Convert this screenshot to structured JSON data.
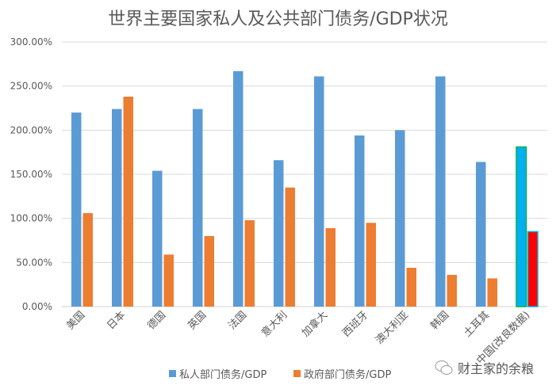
{
  "chart_data": {
    "type": "bar",
    "title": "世界主要国家私人及公共部门债务/GDP状况",
    "categories": [
      "美国",
      "日本",
      "德国",
      "英国",
      "法国",
      "意大利",
      "加拿大",
      "西班牙",
      "澳大利亚",
      "韩国",
      "土耳其",
      "中国(改良数据)"
    ],
    "series": [
      {
        "name": "私人部门债务/GDP",
        "color": "#5B9BD5",
        "values": [
          220,
          224,
          154,
          224,
          267,
          166,
          261,
          194,
          200,
          261,
          164,
          181
        ]
      },
      {
        "name": "政府部门债务/GDP",
        "color": "#ED7D31",
        "values": [
          106,
          238,
          59,
          80,
          98,
          135,
          89,
          95,
          44,
          36,
          32,
          85
        ]
      }
    ],
    "highlight": {
      "category": "中国(改良数据)",
      "private_fill": "#00B0F0",
      "private_border": "#00B050",
      "government_fill": "#FF0000",
      "government_border": "#00B0F0"
    },
    "yticks": [
      "0.00%",
      "50.00%",
      "100.00%",
      "150.00%",
      "200.00%",
      "250.00%",
      "300.00%"
    ],
    "ylim": [
      0,
      300
    ],
    "unit": "%",
    "grid": true,
    "legend": "bottom"
  },
  "watermark": {
    "text": "财主家的余粮",
    "icon": "wechat-icon"
  }
}
